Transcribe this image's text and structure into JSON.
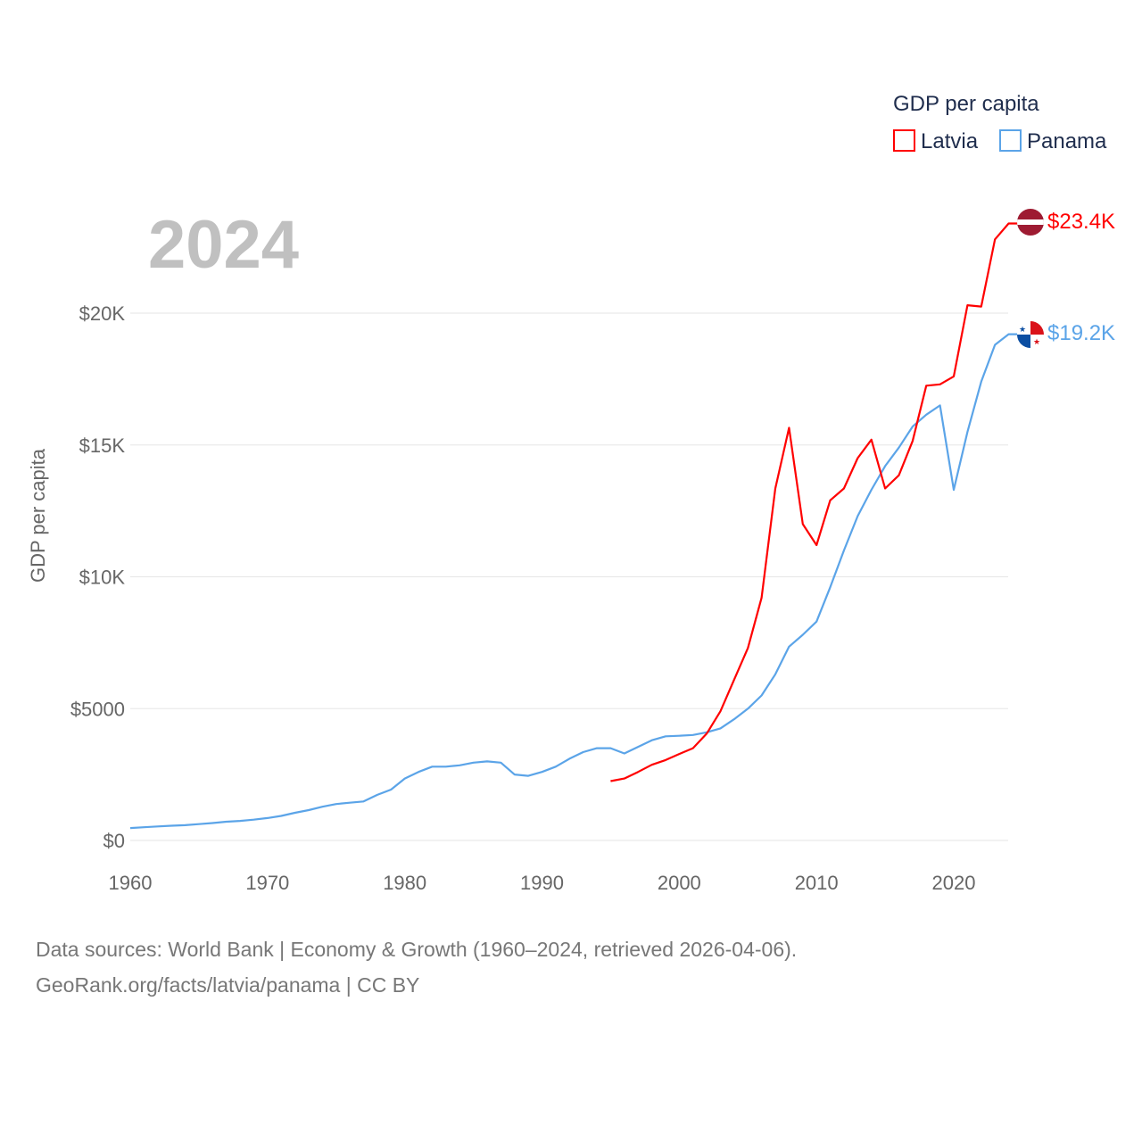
{
  "chart_data": {
    "type": "line",
    "title": "",
    "year_label": "2024",
    "ylabel": "GDP per capita",
    "xlabel": "",
    "legend": {
      "title": "GDP per capita",
      "placement": "top-right",
      "entries": [
        "Latvia",
        "Panama"
      ]
    },
    "xlim": [
      1960,
      2024
    ],
    "ylim": [
      0,
      24000
    ],
    "x_ticks": [
      1960,
      1970,
      1980,
      1990,
      2000,
      2010,
      2020
    ],
    "x_tick_labels": [
      "1960",
      "1970",
      "1980",
      "1990",
      "2000",
      "2010",
      "2020"
    ],
    "y_ticks": [
      0,
      5000,
      10000,
      15000,
      20000
    ],
    "y_tick_labels": [
      "$0",
      "$5000",
      "$10K",
      "$15K",
      "$20K"
    ],
    "grid": true,
    "series": [
      {
        "name": "Latvia",
        "color": "#ff0000",
        "end_label": "$23.4K",
        "start_year": 1995,
        "values": [
          2250,
          2350,
          2600,
          2870,
          3050,
          3280,
          3500,
          4050,
          4900,
          6100,
          7300,
          9200,
          13350,
          15650,
          12000,
          11200,
          12900,
          13350,
          14500,
          15200,
          13350,
          13850,
          15150,
          17250,
          17300,
          17600,
          20300,
          20250,
          22800,
          23400
        ]
      },
      {
        "name": "Panama",
        "color": "#5ba4e8",
        "end_label": "$19.2K",
        "start_year": 1960,
        "values": [
          470,
          500,
          530,
          560,
          580,
          620,
          660,
          710,
          740,
          790,
          850,
          930,
          1050,
          1150,
          1280,
          1380,
          1430,
          1480,
          1730,
          1930,
          2350,
          2600,
          2800,
          2800,
          2850,
          2950,
          3000,
          2950,
          2500,
          2450,
          2600,
          2800,
          3100,
          3350,
          3500,
          3500,
          3300,
          3550,
          3800,
          3950,
          3970,
          4000,
          4100,
          4250,
          4600,
          5000,
          5500,
          6300,
          7350,
          7800,
          8300,
          9600,
          11000,
          12300,
          13300,
          14200,
          14900,
          15700,
          16150,
          16500,
          13300,
          15500,
          17400,
          18800,
          19200
        ]
      }
    ]
  },
  "footer": {
    "line1": "Data sources: World Bank | Economy & Growth (1960–2024, retrieved 2026-04-06).",
    "line2": "GeoRank.org/facts/latvia/panama | CC BY"
  }
}
